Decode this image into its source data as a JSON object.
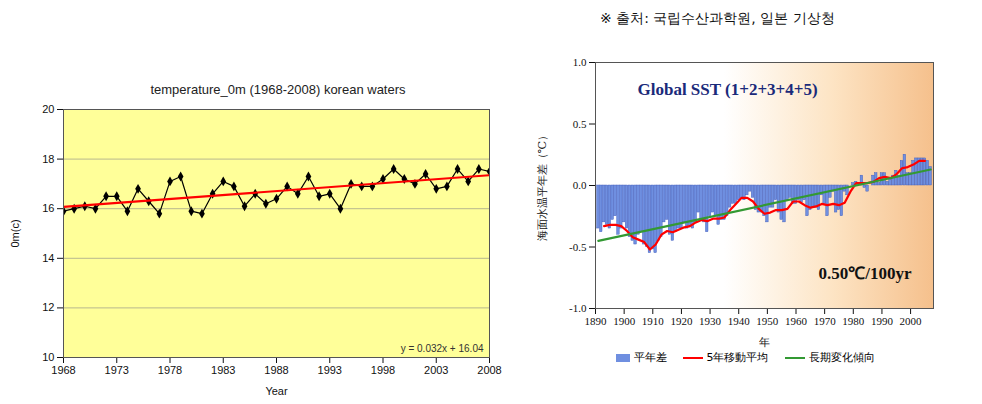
{
  "caption": "※ 출처: 국립수산과학원, 일본 기상청",
  "chart_data": [
    {
      "type": "line",
      "title": "temperature_0m (1968-2008) korean waters",
      "x_label": "Year",
      "y_label": "0m(c)",
      "xlim": [
        1968,
        2008
      ],
      "xticks": [
        1968,
        1973,
        1978,
        1983,
        1988,
        1993,
        1998,
        2003,
        2008
      ],
      "ylim": [
        10,
        20
      ],
      "yticks": [
        10,
        12,
        14,
        16,
        18,
        20
      ],
      "grid": true,
      "series": [
        {
          "type": "line",
          "color": "#000000",
          "marker": "diamond",
          "x": [
            1968,
            1969,
            1970,
            1971,
            1972,
            1973,
            1974,
            1975,
            1976,
            1977,
            1978,
            1979,
            1980,
            1981,
            1982,
            1983,
            1984,
            1985,
            1986,
            1987,
            1988,
            1989,
            1990,
            1991,
            1992,
            1993,
            1994,
            1995,
            1996,
            1997,
            1998,
            1999,
            2000,
            2001,
            2002,
            2003,
            2004,
            2005,
            2006,
            2007,
            2008
          ],
          "values": [
            15.9,
            16.0,
            16.1,
            16.0,
            16.5,
            16.5,
            15.9,
            16.8,
            16.3,
            15.8,
            17.1,
            17.3,
            15.9,
            15.8,
            16.6,
            17.1,
            16.9,
            16.1,
            16.6,
            16.2,
            16.4,
            16.9,
            16.6,
            17.3,
            16.5,
            16.6,
            16.0,
            17.0,
            16.9,
            16.9,
            17.2,
            17.6,
            17.2,
            17.0,
            17.4,
            16.8,
            16.9,
            17.6,
            17.1,
            17.6,
            17.5
          ]
        },
        {
          "type": "line",
          "color": "#ff0000",
          "x": [
            1968,
            2008
          ],
          "values": [
            16.07,
            17.35
          ]
        }
      ],
      "annotations": [
        {
          "text": "y = 0.032x + 16.04"
        }
      ]
    },
    {
      "type": "bar",
      "title": "Global SST (1+2+3+4+5)",
      "x_label": "年",
      "y_label": "海面水温平年差（℃）",
      "xlim": [
        1890,
        2008
      ],
      "xticks": [
        1890,
        1900,
        1910,
        1920,
        1930,
        1940,
        1950,
        1960,
        1970,
        1980,
        1990,
        2000
      ],
      "ylim": [
        -1,
        1
      ],
      "yticks": [
        {
          "value": -1,
          "label": "-1.0"
        },
        {
          "value": -0.5,
          "label": "-0.5"
        },
        {
          "value": 0,
          "label": "0.0"
        },
        {
          "value": 0.5,
          "label": "0.5"
        },
        {
          "value": 1,
          "label": "1.0"
        }
      ],
      "legend": "bottom",
      "series": [
        {
          "name": "平年差",
          "type": "bar",
          "color": "#6f8fe0",
          "x": [
            1891,
            1892,
            1893,
            1894,
            1895,
            1896,
            1897,
            1898,
            1899,
            1900,
            1901,
            1902,
            1903,
            1904,
            1905,
            1906,
            1907,
            1908,
            1909,
            1910,
            1911,
            1912,
            1913,
            1914,
            1915,
            1916,
            1917,
            1918,
            1919,
            1920,
            1921,
            1922,
            1923,
            1924,
            1925,
            1926,
            1927,
            1928,
            1929,
            1930,
            1931,
            1932,
            1933,
            1934,
            1935,
            1936,
            1937,
            1938,
            1939,
            1940,
            1941,
            1942,
            1943,
            1944,
            1945,
            1946,
            1947,
            1948,
            1949,
            1950,
            1951,
            1952,
            1953,
            1954,
            1955,
            1956,
            1957,
            1958,
            1959,
            1960,
            1961,
            1962,
            1963,
            1964,
            1965,
            1966,
            1967,
            1968,
            1969,
            1970,
            1971,
            1972,
            1973,
            1974,
            1975,
            1976,
            1977,
            1978,
            1979,
            1980,
            1981,
            1982,
            1983,
            1984,
            1985,
            1986,
            1987,
            1988,
            1989,
            1990,
            1991,
            1992,
            1993,
            1994,
            1995,
            1996,
            1997,
            1998,
            1999,
            2000,
            2001,
            2002,
            2003,
            2004,
            2005,
            2006,
            2007
          ],
          "values": [
            -0.35,
            -0.38,
            -0.3,
            -0.32,
            -0.35,
            -0.28,
            -0.25,
            -0.4,
            -0.35,
            -0.3,
            -0.35,
            -0.42,
            -0.45,
            -0.48,
            -0.4,
            -0.38,
            -0.48,
            -0.5,
            -0.55,
            -0.52,
            -0.55,
            -0.45,
            -0.42,
            -0.3,
            -0.28,
            -0.4,
            -0.45,
            -0.38,
            -0.35,
            -0.35,
            -0.3,
            -0.35,
            -0.33,
            -0.35,
            -0.3,
            -0.22,
            -0.28,
            -0.3,
            -0.38,
            -0.25,
            -0.22,
            -0.25,
            -0.32,
            -0.28,
            -0.28,
            -0.25,
            -0.18,
            -0.15,
            -0.15,
            -0.12,
            -0.1,
            -0.12,
            -0.08,
            -0.05,
            -0.1,
            -0.2,
            -0.22,
            -0.22,
            -0.25,
            -0.3,
            -0.18,
            -0.18,
            -0.12,
            -0.22,
            -0.28,
            -0.3,
            -0.12,
            -0.1,
            -0.15,
            -0.15,
            -0.12,
            -0.14,
            -0.12,
            -0.25,
            -0.2,
            -0.18,
            -0.18,
            -0.2,
            -0.08,
            -0.15,
            -0.25,
            -0.1,
            -0.05,
            -0.22,
            -0.2,
            -0.25,
            -0.05,
            -0.08,
            0.0,
            0.02,
            0.03,
            0.0,
            0.08,
            -0.02,
            -0.05,
            0.0,
            0.08,
            0.1,
            0.02,
            0.1,
            0.1,
            0.03,
            0.05,
            0.08,
            0.12,
            0.08,
            0.2,
            0.25,
            0.1,
            0.1,
            0.2,
            0.22,
            0.22,
            0.22,
            0.22,
            0.2,
            0.15
          ]
        },
        {
          "name": "5年移動平均",
          "type": "line",
          "color": "#ff0000",
          "x": [
            1893,
            1895,
            1897,
            1899,
            1901,
            1903,
            1905,
            1907,
            1909,
            1911,
            1913,
            1915,
            1917,
            1919,
            1921,
            1923,
            1925,
            1927,
            1929,
            1931,
            1933,
            1935,
            1937,
            1939,
            1941,
            1943,
            1945,
            1947,
            1949,
            1951,
            1953,
            1955,
            1957,
            1959,
            1961,
            1963,
            1965,
            1967,
            1969,
            1971,
            1973,
            1975,
            1977,
            1979,
            1981,
            1983,
            1985,
            1987,
            1989,
            1991,
            1993,
            1995,
            1997,
            1999,
            2001,
            2003,
            2005
          ],
          "values": [
            -0.33,
            -0.32,
            -0.32,
            -0.33,
            -0.37,
            -0.42,
            -0.44,
            -0.46,
            -0.52,
            -0.48,
            -0.4,
            -0.37,
            -0.38,
            -0.36,
            -0.34,
            -0.33,
            -0.3,
            -0.28,
            -0.29,
            -0.27,
            -0.27,
            -0.26,
            -0.2,
            -0.15,
            -0.1,
            -0.1,
            -0.13,
            -0.19,
            -0.23,
            -0.22,
            -0.2,
            -0.2,
            -0.19,
            -0.13,
            -0.13,
            -0.16,
            -0.18,
            -0.17,
            -0.15,
            -0.16,
            -0.15,
            -0.16,
            -0.14,
            -0.05,
            0.02,
            0.02,
            0.02,
            0.03,
            0.06,
            0.07,
            0.06,
            0.09,
            0.14,
            0.15,
            0.17,
            0.2,
            0.2
          ]
        },
        {
          "name": "長期変化傾向",
          "type": "line",
          "color": "#339933",
          "x": [
            1891,
            2007
          ],
          "values": [
            -0.45,
            0.13
          ]
        }
      ],
      "annotations": [
        {
          "text": "0.50℃/100yr"
        }
      ]
    }
  ]
}
